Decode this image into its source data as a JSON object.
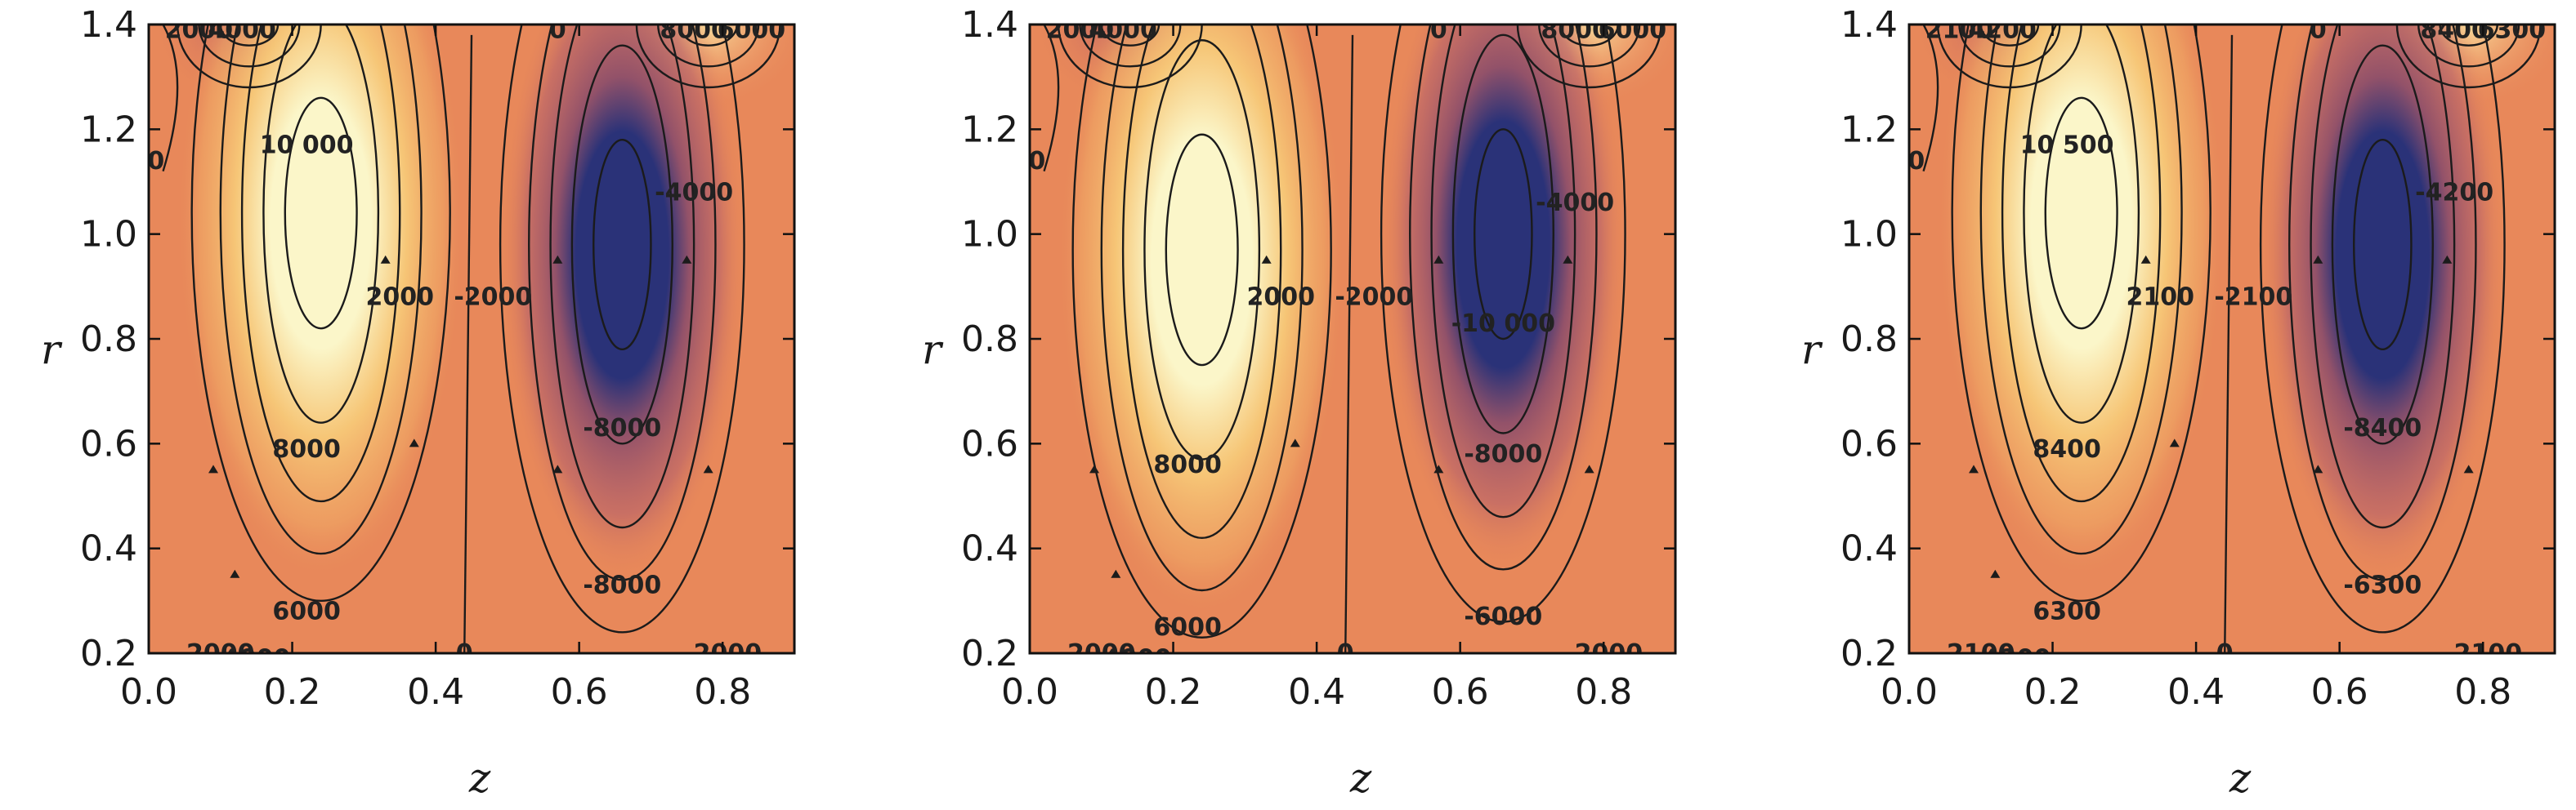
{
  "chart_data": [
    {
      "type": "contour",
      "xlabel": "z",
      "ylabel": "r",
      "xlim": [
        0.0,
        0.9
      ],
      "ylim": [
        0.2,
        1.4
      ],
      "xticks": [
        "0.0",
        "0.2",
        "0.4",
        "0.6",
        "0.8"
      ],
      "yticks": [
        "0.2",
        "0.4",
        "0.6",
        "0.8",
        "1.0",
        "1.2",
        "1.4"
      ],
      "extrema": [
        {
          "kind": "max",
          "z": 0.24,
          "r": 1.02,
          "color": "#fbf6c9"
        },
        {
          "kind": "min",
          "z": 0.66,
          "r": 0.96,
          "color": "#2a3278"
        }
      ],
      "contour_labels": [
        {
          "text": "10 000",
          "z": 0.22,
          "r": 1.17
        },
        {
          "text": "2000",
          "z": 0.35,
          "r": 0.88
        },
        {
          "text": "8000",
          "z": 0.22,
          "r": 0.59
        },
        {
          "text": "6000",
          "z": 0.22,
          "r": 0.28
        },
        {
          "text": "2000",
          "z": 0.1,
          "r": 0.2
        },
        {
          "text": "4000",
          "z": 0.15,
          "r": 0.19
        },
        {
          "text": "-2000",
          "z": 0.48,
          "r": 0.88
        },
        {
          "text": "-4000",
          "z": 0.76,
          "r": 1.08
        },
        {
          "text": "-8000",
          "z": 0.66,
          "r": 0.63
        },
        {
          "text": "-8000",
          "z": 0.66,
          "r": 0.33
        },
        {
          "text": "-2000",
          "z": 0.8,
          "r": 0.2
        },
        {
          "text": "0",
          "z": 0.01,
          "r": 1.14
        },
        {
          "text": "0",
          "z": 0.44,
          "r": 0.2
        },
        {
          "text": "0",
          "z": 0.57,
          "r": 1.39
        },
        {
          "text": "2000",
          "z": 0.07,
          "r": 1.39
        },
        {
          "text": "4000",
          "z": 0.13,
          "r": 1.39
        },
        {
          "text": "8000",
          "z": 0.76,
          "r": 1.39
        },
        {
          "text": "6000",
          "z": 0.84,
          "r": 1.39
        }
      ]
    },
    {
      "type": "contour",
      "xlabel": "z",
      "ylabel": "r",
      "xlim": [
        0.0,
        0.9
      ],
      "ylim": [
        0.2,
        1.4
      ],
      "xticks": [
        "0.0",
        "0.2",
        "0.4",
        "0.6",
        "0.8"
      ],
      "yticks": [
        "0.2",
        "0.4",
        "0.6",
        "0.8",
        "1.0",
        "1.2",
        "1.4"
      ],
      "extrema": [
        {
          "kind": "max",
          "z": 0.24,
          "r": 0.95,
          "color": "#fbf6c9"
        },
        {
          "kind": "min",
          "z": 0.66,
          "r": 0.98,
          "color": "#2a3278"
        }
      ],
      "contour_labels": [
        {
          "text": "2000",
          "z": 0.35,
          "r": 0.88
        },
        {
          "text": "8000",
          "z": 0.22,
          "r": 0.56
        },
        {
          "text": "6000",
          "z": 0.22,
          "r": 0.25
        },
        {
          "text": "2000",
          "z": 0.1,
          "r": 0.2
        },
        {
          "text": "4000",
          "z": 0.15,
          "r": 0.19
        },
        {
          "text": "-2000",
          "z": 0.48,
          "r": 0.88
        },
        {
          "text": "-4000",
          "z": 0.76,
          "r": 1.06
        },
        {
          "text": "-10 000",
          "z": 0.66,
          "r": 0.83
        },
        {
          "text": "-8000",
          "z": 0.66,
          "r": 0.58
        },
        {
          "text": "-6000",
          "z": 0.66,
          "r": 0.27
        },
        {
          "text": "-2000",
          "z": 0.8,
          "r": 0.2
        },
        {
          "text": "0",
          "z": 0.01,
          "r": 1.14
        },
        {
          "text": "0",
          "z": 0.44,
          "r": 0.2
        },
        {
          "text": "0",
          "z": 0.57,
          "r": 1.39
        },
        {
          "text": "2000",
          "z": 0.07,
          "r": 1.39
        },
        {
          "text": "4000",
          "z": 0.13,
          "r": 1.39
        },
        {
          "text": "8000",
          "z": 0.76,
          "r": 1.39
        },
        {
          "text": "6000",
          "z": 0.84,
          "r": 1.39
        }
      ]
    },
    {
      "type": "contour",
      "xlabel": "z",
      "ylabel": "r",
      "xlim": [
        0.0,
        0.9
      ],
      "ylim": [
        0.2,
        1.4
      ],
      "xticks": [
        "0.0",
        "0.2",
        "0.4",
        "0.6",
        "0.8"
      ],
      "yticks": [
        "0.2",
        "0.4",
        "0.6",
        "0.8",
        "1.0",
        "1.2",
        "1.4"
      ],
      "extrema": [
        {
          "kind": "max",
          "z": 0.24,
          "r": 1.02,
          "color": "#fbf6c9"
        },
        {
          "kind": "min",
          "z": 0.66,
          "r": 0.96,
          "color": "#2a3278"
        }
      ],
      "contour_labels": [
        {
          "text": "10 500",
          "z": 0.22,
          "r": 1.17
        },
        {
          "text": "2100",
          "z": 0.35,
          "r": 0.88
        },
        {
          "text": "8400",
          "z": 0.22,
          "r": 0.59
        },
        {
          "text": "6300",
          "z": 0.22,
          "r": 0.28
        },
        {
          "text": "2100",
          "z": 0.1,
          "r": 0.2
        },
        {
          "text": "4200",
          "z": 0.15,
          "r": 0.19
        },
        {
          "text": "-2100",
          "z": 0.48,
          "r": 0.88
        },
        {
          "text": "-4200",
          "z": 0.76,
          "r": 1.08
        },
        {
          "text": "-8400",
          "z": 0.66,
          "r": 0.63
        },
        {
          "text": "-6300",
          "z": 0.66,
          "r": 0.33
        },
        {
          "text": "-2100",
          "z": 0.8,
          "r": 0.2
        },
        {
          "text": "0",
          "z": 0.01,
          "r": 1.14
        },
        {
          "text": "0",
          "z": 0.44,
          "r": 0.2
        },
        {
          "text": "0",
          "z": 0.57,
          "r": 1.39
        },
        {
          "text": "2100",
          "z": 0.07,
          "r": 1.39
        },
        {
          "text": "4200",
          "z": 0.13,
          "r": 1.39
        },
        {
          "text": "8400",
          "z": 0.76,
          "r": 1.39
        },
        {
          "text": "6300",
          "z": 0.84,
          "r": 1.39
        }
      ]
    }
  ],
  "colors": {
    "background_field": "#e8885a",
    "positive_light": "#fbf6c9",
    "positive_mid": "#f7c978",
    "negative_mid": "#8e4f6a",
    "negative_core": "#2a3278",
    "contour_line": "#1b1b1b"
  }
}
